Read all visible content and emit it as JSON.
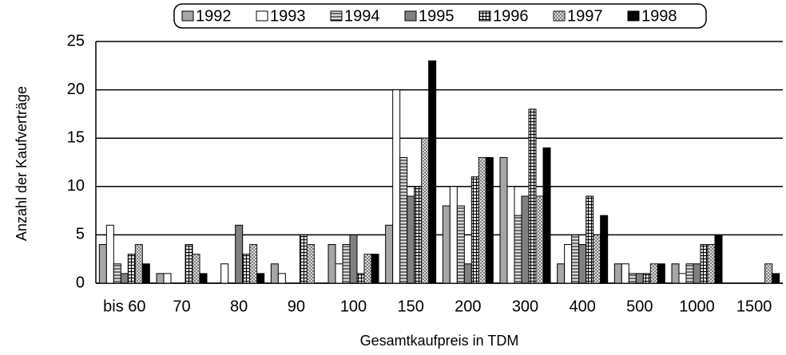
{
  "chart_data": {
    "type": "bar",
    "legend": "top",
    "grid": true,
    "x_label": "Gesamtkaufpreis in TDM",
    "y_label": "Anzahl der Kaufverträge",
    "categories": [
      "bis 60",
      "70",
      "80",
      "90",
      "100",
      "150",
      "200",
      "300",
      "400",
      "500",
      "1000",
      "1500"
    ],
    "ylim": [
      0,
      25
    ],
    "yticks": [
      0,
      5,
      10,
      15,
      20,
      25
    ],
    "series": [
      {
        "name": "1992",
        "color": "#a6a6a6",
        "values": [
          4,
          1,
          0,
          2,
          4,
          6,
          8,
          13,
          2,
          2,
          2,
          0
        ]
      },
      {
        "name": "1993",
        "color": "#ffffff",
        "values": [
          6,
          1,
          2,
          1,
          2,
          20,
          10,
          10,
          4,
          2,
          1,
          0
        ]
      },
      {
        "name": "1994",
        "color": "#d9d9d9",
        "values": [
          2,
          0,
          0,
          0,
          4,
          13,
          8,
          7,
          5,
          1,
          2,
          0
        ]
      },
      {
        "name": "1995",
        "color": "#808080",
        "values": [
          1,
          0,
          6,
          0,
          5,
          9,
          2,
          9,
          4,
          1,
          2,
          0
        ]
      },
      {
        "name": "1996",
        "color": "#e0e0e0",
        "values": [
          3,
          4,
          3,
          5,
          1,
          10,
          11,
          18,
          9,
          1,
          4,
          0
        ]
      },
      {
        "name": "1997",
        "color": "#f0f0f0",
        "values": [
          4,
          3,
          4,
          4,
          3,
          15,
          13,
          9,
          5,
          2,
          4,
          2
        ]
      },
      {
        "name": "1998",
        "color": "#000000",
        "values": [
          2,
          1,
          1,
          0,
          3,
          23,
          13,
          14,
          7,
          2,
          5,
          1
        ]
      }
    ]
  }
}
